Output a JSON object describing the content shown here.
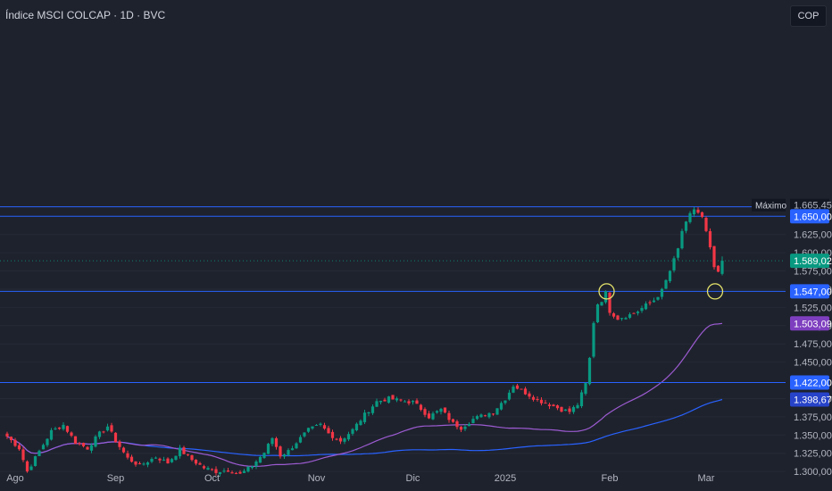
{
  "header": {
    "title": "Índice MSCI COLCAP · 1D · BVC",
    "currency": "COP"
  },
  "chart_data": {
    "type": "candlestick",
    "title": "Índice MSCI COLCAP · 1D · BVC",
    "ylim": [
      1290,
      1670
    ],
    "price_ticks": [
      {
        "value": 1300,
        "label": "1.300,00"
      },
      {
        "value": 1325,
        "label": "1.325,00"
      },
      {
        "value": 1350,
        "label": "1.350,00"
      },
      {
        "value": 1375,
        "label": "1.375,00"
      },
      {
        "value": 1400,
        "label": "1.400,00"
      },
      {
        "value": 1450,
        "label": "1.450,00"
      },
      {
        "value": 1475,
        "label": "1.475,00"
      },
      {
        "value": 1500,
        "label": "1.500,00"
      },
      {
        "value": 1525,
        "label": "1.525,00"
      },
      {
        "value": 1550,
        "label": "1.550,00"
      },
      {
        "value": 1575,
        "label": "1.575,00"
      },
      {
        "value": 1600,
        "label": "1.600,00"
      },
      {
        "value": 1625,
        "label": "1.625,00"
      }
    ],
    "time_labels": [
      {
        "index": 2,
        "label": "Ago"
      },
      {
        "index": 27,
        "label": "Sep"
      },
      {
        "index": 51,
        "label": "Oct"
      },
      {
        "index": 77,
        "label": "Nov"
      },
      {
        "index": 101,
        "label": "Dic"
      },
      {
        "index": 124,
        "label": "2025"
      },
      {
        "index": 150,
        "label": "Feb"
      },
      {
        "index": 174,
        "label": "Mar"
      }
    ],
    "horizontal_lines": [
      {
        "value": 1663,
        "label": ""
      },
      {
        "value": 1650,
        "label": "1.650,00"
      },
      {
        "value": 1547,
        "label": "1.547,00"
      },
      {
        "value": 1422,
        "label": "1.422,00"
      }
    ],
    "max_marker": {
      "label": "Máximo",
      "value_label": "1.665,45",
      "value": 1665.45
    },
    "last_price": {
      "value": 1589.02,
      "label": "1.589,02"
    },
    "ma_fast": {
      "name": "",
      "last_label": "1.503,09",
      "last_value": 1503.09,
      "color": "#9c5bd1"
    },
    "ma_slow": {
      "name": "",
      "last_label": "1.398,67",
      "last_value": 1398.67,
      "color": "#2962ff"
    },
    "circled_touches": [
      {
        "index": 149,
        "value": 1547
      },
      {
        "index": 176,
        "value": 1547
      }
    ],
    "anchors": [
      [
        0,
        1348
      ],
      [
        3,
        1332
      ],
      [
        5,
        1300
      ],
      [
        8,
        1328
      ],
      [
        11,
        1355
      ],
      [
        14,
        1364
      ],
      [
        17,
        1340
      ],
      [
        20,
        1332
      ],
      [
        23,
        1352
      ],
      [
        25,
        1362
      ],
      [
        27,
        1342
      ],
      [
        30,
        1318
      ],
      [
        33,
        1308
      ],
      [
        37,
        1320
      ],
      [
        40,
        1312
      ],
      [
        43,
        1330
      ],
      [
        46,
        1316
      ],
      [
        49,
        1305
      ],
      [
        52,
        1300
      ],
      [
        55,
        1302
      ],
      [
        58,
        1296
      ],
      [
        61,
        1308
      ],
      [
        64,
        1326
      ],
      [
        66,
        1346
      ],
      [
        68,
        1322
      ],
      [
        70,
        1328
      ],
      [
        72,
        1340
      ],
      [
        75,
        1357
      ],
      [
        78,
        1364
      ],
      [
        80,
        1352
      ],
      [
        83,
        1342
      ],
      [
        86,
        1357
      ],
      [
        89,
        1378
      ],
      [
        92,
        1396
      ],
      [
        95,
        1400
      ],
      [
        98,
        1397
      ],
      [
        101,
        1395
      ],
      [
        103,
        1386
      ],
      [
        105,
        1375
      ],
      [
        108,
        1385
      ],
      [
        111,
        1366
      ],
      [
        113,
        1360
      ],
      [
        116,
        1372
      ],
      [
        119,
        1378
      ],
      [
        121,
        1382
      ],
      [
        124,
        1400
      ],
      [
        126,
        1418
      ],
      [
        129,
        1408
      ],
      [
        132,
        1398
      ],
      [
        135,
        1392
      ],
      [
        138,
        1385
      ],
      [
        140,
        1382
      ],
      [
        142,
        1392
      ],
      [
        144,
        1420
      ],
      [
        145,
        1455
      ],
      [
        146,
        1505
      ],
      [
        147,
        1530
      ],
      [
        148,
        1535
      ],
      [
        149,
        1545
      ],
      [
        150,
        1520
      ],
      [
        152,
        1510
      ],
      [
        155,
        1515
      ],
      [
        157,
        1520
      ],
      [
        159,
        1528
      ],
      [
        161,
        1535
      ],
      [
        163,
        1548
      ],
      [
        165,
        1575
      ],
      [
        167,
        1605
      ],
      [
        168,
        1630
      ],
      [
        169,
        1640
      ],
      [
        170,
        1652
      ],
      [
        171,
        1660
      ],
      [
        172,
        1655
      ],
      [
        173,
        1648
      ],
      [
        174,
        1628
      ],
      [
        175,
        1605
      ],
      [
        176,
        1580
      ],
      [
        177,
        1571
      ],
      [
        178,
        1589
      ]
    ],
    "close_last": 1589.02,
    "volatility_seed": 7
  }
}
